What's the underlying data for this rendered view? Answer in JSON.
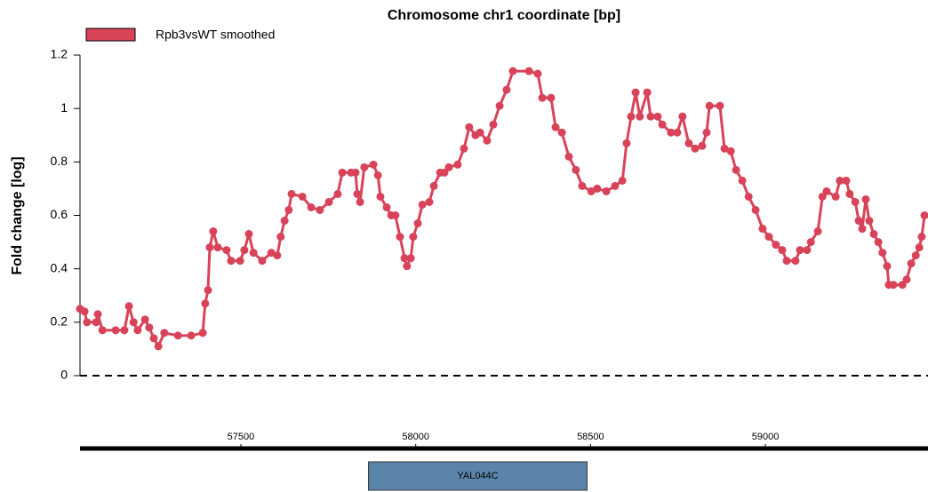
{
  "chart_data": {
    "type": "line",
    "title": "Chromosome chr1 coordinate [bp]",
    "y_label": "Fold change [log]",
    "x": [
      57040,
      57053,
      57060,
      57086,
      57091,
      57104,
      57142,
      57167,
      57180,
      57193,
      57205,
      57226,
      57238,
      57251,
      57264,
      57281,
      57320,
      57358,
      57391,
      57398,
      57406,
      57411,
      57421,
      57434,
      57459,
      57472,
      57498,
      57510,
      57523,
      57536,
      57561,
      57587,
      57604,
      57614,
      57625,
      57637,
      57645,
      57676,
      57701,
      57726,
      57752,
      57777,
      57790,
      57815,
      57828,
      57833,
      57841,
      57853,
      57879,
      57892,
      57899,
      57917,
      57930,
      57942,
      57955,
      57968,
      57975,
      57986,
      57993,
      58006,
      58019,
      58039,
      58052,
      58070,
      58082,
      58095,
      58120,
      58138,
      58153,
      58171,
      58184,
      58204,
      58222,
      58240,
      58260,
      58278,
      58324,
      58349,
      58362,
      58387,
      58400,
      58418,
      58438,
      58458,
      58476,
      58502,
      58519,
      58545,
      58570,
      58591,
      58603,
      58616,
      58629,
      58641,
      58662,
      58672,
      58692,
      58705,
      58730,
      58748,
      58763,
      58781,
      58799,
      58819,
      58832,
      58840,
      58870,
      58883,
      58901,
      58916,
      58934,
      58952,
      58972,
      58992,
      59010,
      59030,
      59048,
      59061,
      59086,
      59099,
      59119,
      59130,
      59150,
      59163,
      59175,
      59201,
      59213,
      59231,
      59241,
      59257,
      59267,
      59277,
      59287,
      59297,
      59310,
      59323,
      59335,
      59348,
      59353,
      59366,
      59392,
      59404,
      59417,
      59430,
      59440,
      59447,
      59455
    ],
    "series": [
      {
        "name": "Rpb3vsWT smoothed",
        "color": "#d9435a",
        "values": [
          0.25,
          0.24,
          0.2,
          0.2,
          0.23,
          0.17,
          0.17,
          0.17,
          0.26,
          0.2,
          0.17,
          0.21,
          0.18,
          0.14,
          0.11,
          0.16,
          0.15,
          0.15,
          0.16,
          0.27,
          0.32,
          0.48,
          0.54,
          0.48,
          0.47,
          0.43,
          0.43,
          0.47,
          0.53,
          0.46,
          0.43,
          0.46,
          0.45,
          0.52,
          0.58,
          0.62,
          0.68,
          0.67,
          0.63,
          0.62,
          0.65,
          0.68,
          0.76,
          0.76,
          0.76,
          0.68,
          0.65,
          0.78,
          0.79,
          0.75,
          0.67,
          0.63,
          0.6,
          0.6,
          0.52,
          0.44,
          0.41,
          0.44,
          0.52,
          0.57,
          0.64,
          0.65,
          0.71,
          0.76,
          0.76,
          0.78,
          0.79,
          0.85,
          0.93,
          0.9,
          0.91,
          0.88,
          0.94,
          1.01,
          1.07,
          1.14,
          1.14,
          1.13,
          1.04,
          1.04,
          0.93,
          0.91,
          0.82,
          0.77,
          0.71,
          0.69,
          0.7,
          0.69,
          0.71,
          0.73,
          0.87,
          0.97,
          1.06,
          0.97,
          1.06,
          0.97,
          0.97,
          0.94,
          0.91,
          0.91,
          0.97,
          0.87,
          0.85,
          0.86,
          0.91,
          1.01,
          1.01,
          0.85,
          0.84,
          0.77,
          0.73,
          0.67,
          0.62,
          0.55,
          0.52,
          0.49,
          0.47,
          0.43,
          0.43,
          0.47,
          0.47,
          0.5,
          0.54,
          0.67,
          0.69,
          0.67,
          0.73,
          0.73,
          0.68,
          0.65,
          0.58,
          0.55,
          0.66,
          0.58,
          0.53,
          0.5,
          0.46,
          0.41,
          0.34,
          0.34,
          0.34,
          0.36,
          0.42,
          0.45,
          0.48,
          0.52,
          0.6
        ]
      }
    ],
    "xlim": [
      57040,
      59465
    ],
    "xticks": [
      57500,
      58000,
      58500,
      59000
    ],
    "ylim": [
      0,
      1.2
    ],
    "yticks": [
      0,
      0.2,
      0.4,
      0.6,
      0.8,
      1,
      1.2
    ],
    "hline": 0,
    "genes": [
      {
        "name": "YAL044C",
        "start": 57865,
        "end": 58490,
        "color": "#5b84ab"
      }
    ]
  }
}
